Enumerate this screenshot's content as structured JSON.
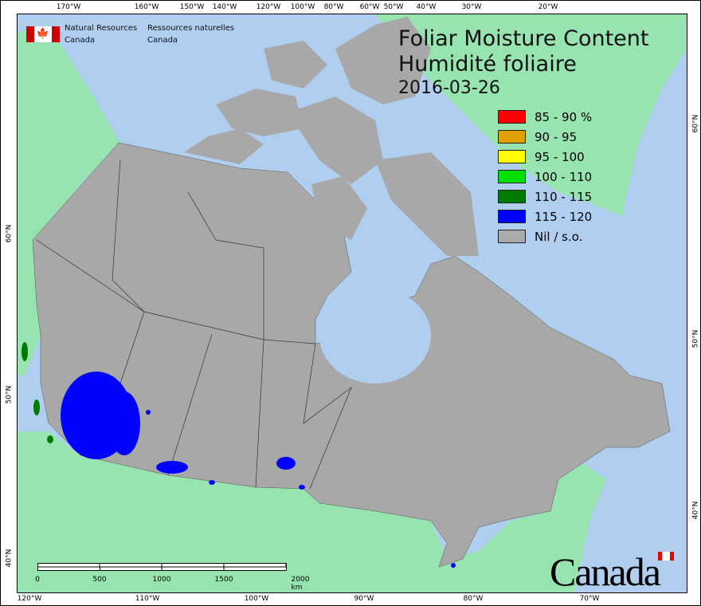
{
  "title": {
    "line1": "Foliar Moisture Content",
    "line2": "Humidité foliaire",
    "date": "2016-03-26"
  },
  "agency": {
    "en1": "Natural Resources",
    "en2": "Canada",
    "fr1": "Ressources naturelles",
    "fr2": "Canada"
  },
  "wordmark": "Canada",
  "legend": [
    {
      "label": "85 - 90 %",
      "color": "#ff0000"
    },
    {
      "label": "90 - 95",
      "color": "#e0a000"
    },
    {
      "label": "95 - 100",
      "color": "#ffff00"
    },
    {
      "label": "100 - 110",
      "color": "#00e000"
    },
    {
      "label": "110 - 115",
      "color": "#007a00"
    },
    {
      "label": "115 - 120",
      "color": "#0000ff"
    },
    {
      "label": "Nil / s.o.",
      "color": "#aaaaaa"
    }
  ],
  "top_ticks": [
    "170°W",
    "160°W",
    "150°W",
    "140°W",
    "120°W",
    "100°W",
    "80°W",
    "60°W",
    "50°W",
    "40°W",
    "30°W",
    "20°W"
  ],
  "bottom_ticks": [
    "120°W",
    "110°W",
    "100°W",
    "90°W",
    "80°W",
    "70°W"
  ],
  "left_ticks": [
    "60°N",
    "50°N",
    "40°N"
  ],
  "right_ticks": [
    "60°N",
    "50°N",
    "40°N"
  ],
  "scale": {
    "labels": [
      "0",
      "500",
      "1000",
      "1500",
      "2000 km"
    ]
  },
  "colors": {
    "ocean": "#b0cff0",
    "foreign_land": "#98e4b0",
    "canada_nil": "#a8a8a8",
    "fmc_115_120": "#0000ff"
  }
}
